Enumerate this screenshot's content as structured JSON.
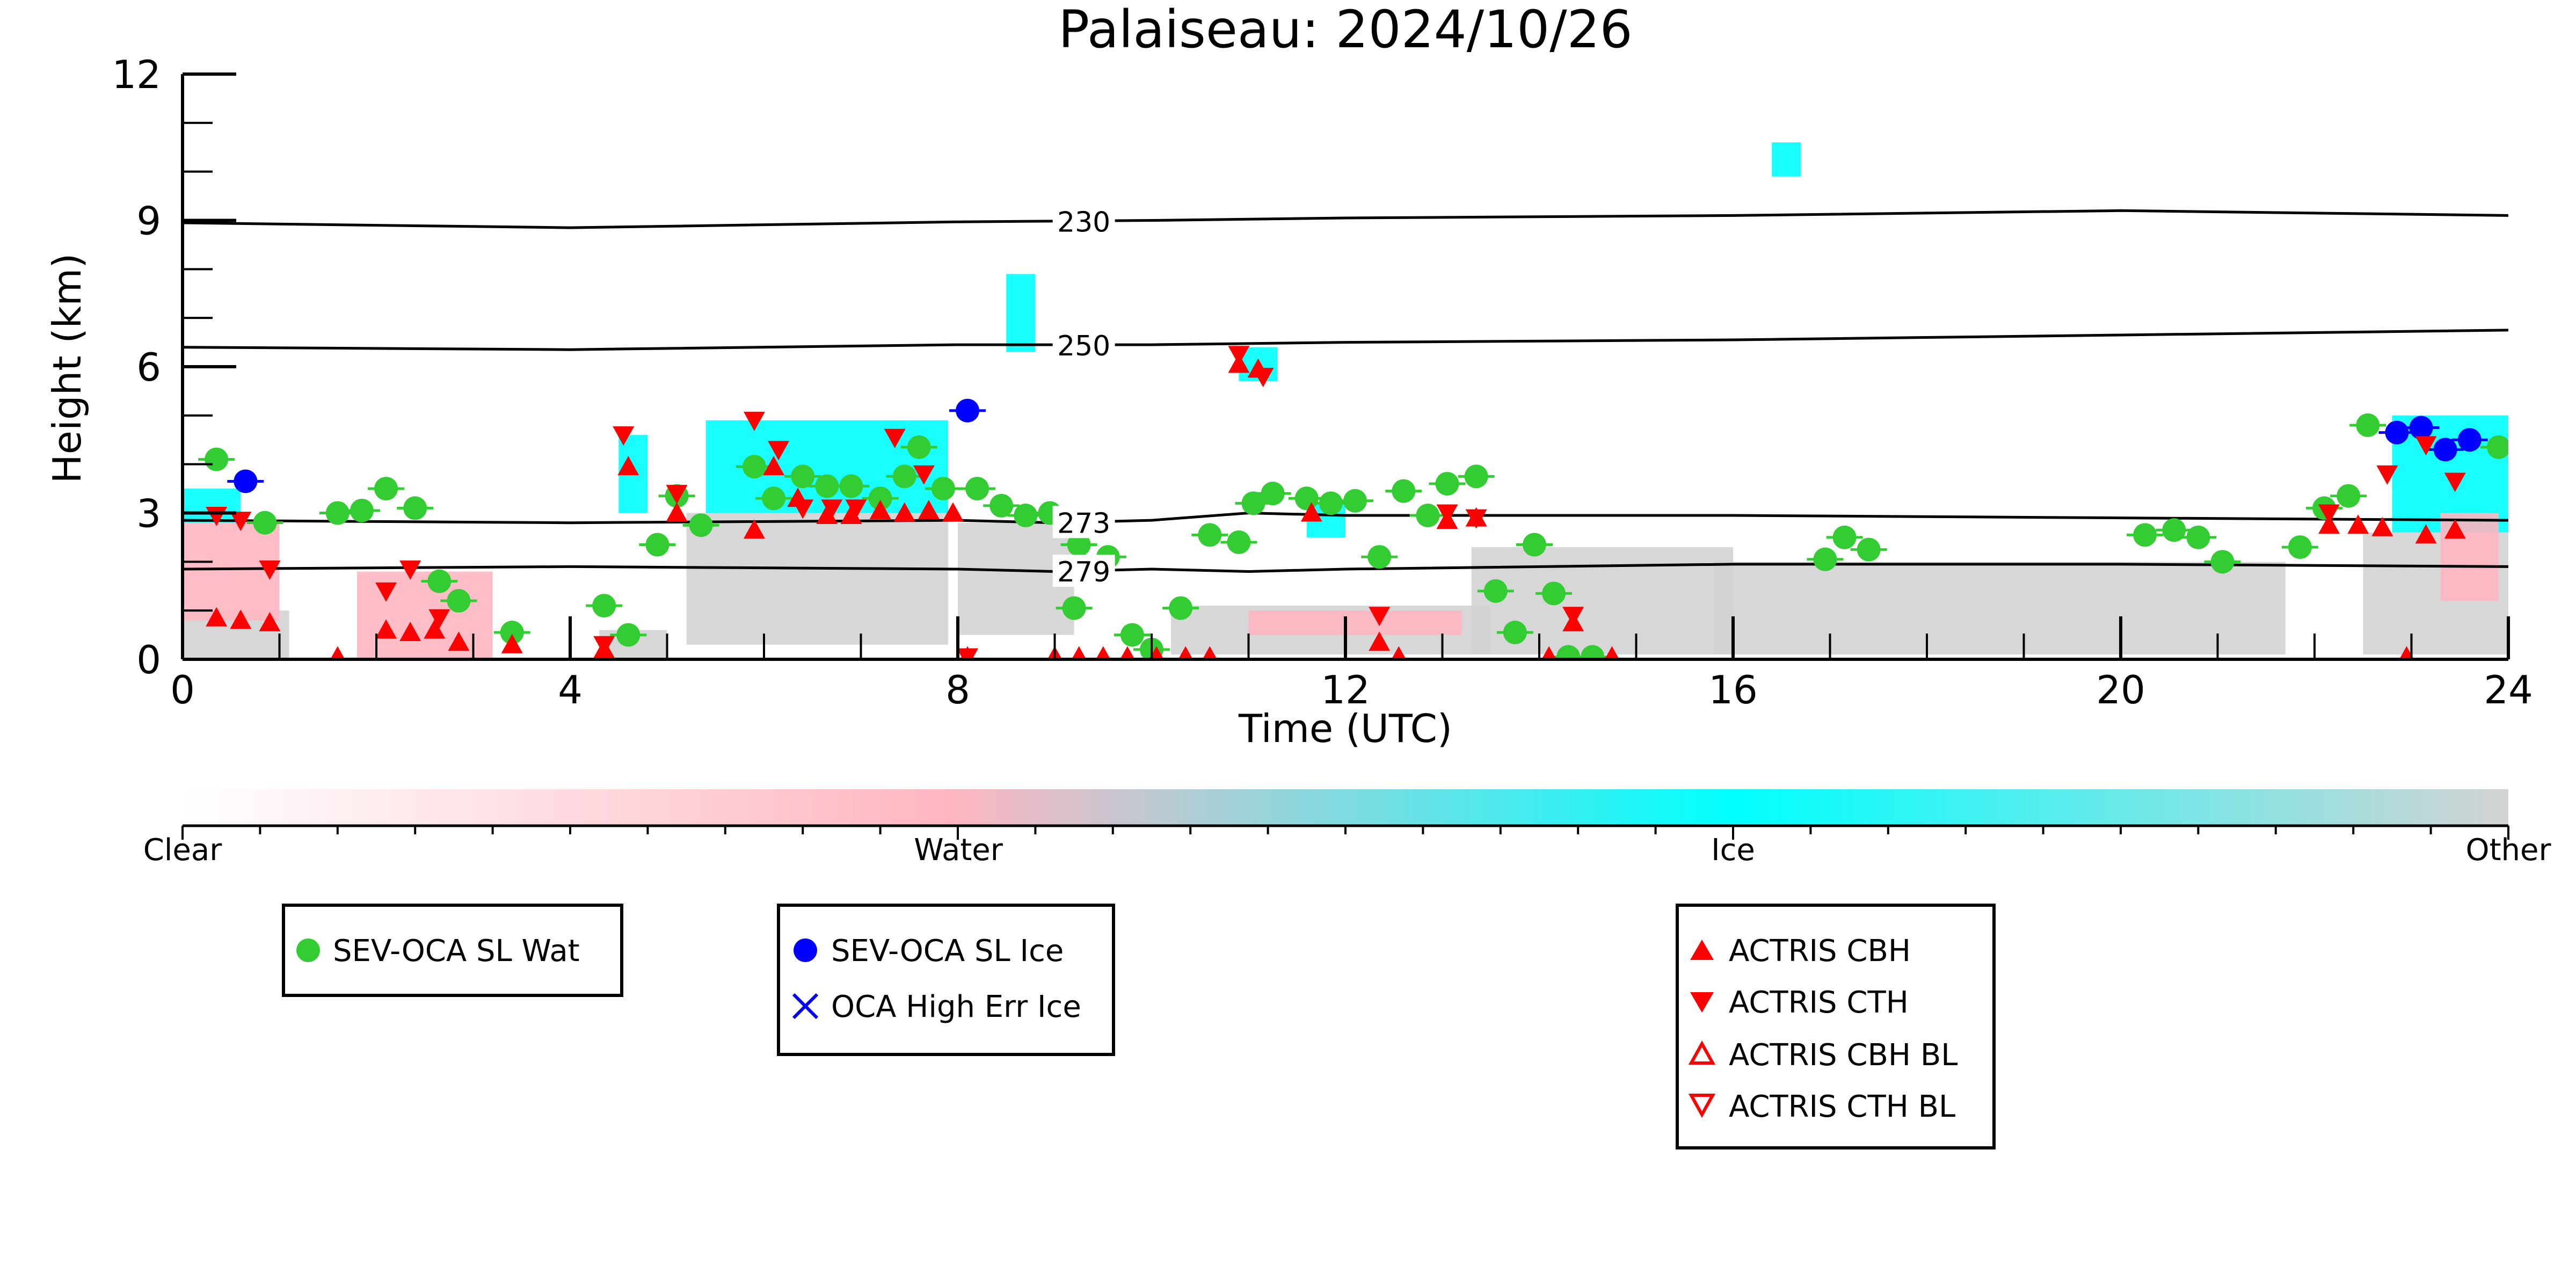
{
  "chart_data": {
    "type": "scatter",
    "title": "Palaiseau: 2024/10/26",
    "xlabel": "Time (UTC)",
    "ylabel": "Height (km)",
    "xlim": [
      0,
      24
    ],
    "ylim": [
      0,
      12
    ],
    "xticks": [
      0,
      4,
      8,
      12,
      16,
      20,
      24
    ],
    "yticks": [
      0,
      3,
      6,
      9,
      12
    ],
    "grid": false,
    "colors": {
      "clear": "#ffffff",
      "water": "#ffb6c1",
      "ice": "#00ffff",
      "other": "#d3d3d3",
      "sevoca_wat": "#33cc33",
      "sevoca_ice": "#0000ff",
      "actris": "#ff0000",
      "isotherm": "#000000"
    },
    "colorbar": {
      "labels": [
        "Clear",
        "Water",
        "Ice",
        "Other"
      ]
    },
    "isotherms": [
      {
        "label": "230",
        "points": [
          [
            0,
            8.95
          ],
          [
            4,
            8.85
          ],
          [
            8,
            8.97
          ],
          [
            10,
            9.0
          ],
          [
            12,
            9.05
          ],
          [
            16,
            9.1
          ],
          [
            20,
            9.2
          ],
          [
            24,
            9.1
          ]
        ]
      },
      {
        "label": "250",
        "points": [
          [
            0,
            6.4
          ],
          [
            4,
            6.35
          ],
          [
            8,
            6.45
          ],
          [
            10,
            6.45
          ],
          [
            12,
            6.5
          ],
          [
            16,
            6.55
          ],
          [
            20,
            6.65
          ],
          [
            24,
            6.75
          ]
        ]
      },
      {
        "label": "273",
        "points": [
          [
            0,
            2.85
          ],
          [
            4,
            2.8
          ],
          [
            8,
            2.85
          ],
          [
            9,
            2.8
          ],
          [
            10,
            2.85
          ],
          [
            11,
            3.0
          ],
          [
            12,
            2.95
          ],
          [
            16,
            2.95
          ],
          [
            20,
            2.9
          ],
          [
            24,
            2.85
          ]
        ]
      },
      {
        "label": "279",
        "points": [
          [
            0,
            1.85
          ],
          [
            4,
            1.9
          ],
          [
            8,
            1.85
          ],
          [
            9,
            1.8
          ],
          [
            10,
            1.85
          ],
          [
            11,
            1.8
          ],
          [
            12,
            1.85
          ],
          [
            16,
            1.95
          ],
          [
            20,
            1.95
          ],
          [
            24,
            1.9
          ]
        ]
      }
    ],
    "cloud_mask": [
      {
        "cls": "other",
        "x0": 0.0,
        "x1": 1.1,
        "y0": 0.0,
        "y1": 1.0
      },
      {
        "cls": "water",
        "x0": 0.0,
        "x1": 1.0,
        "y0": 0.8,
        "y1": 2.8
      },
      {
        "cls": "ice",
        "x0": 0.0,
        "x1": 0.6,
        "y0": 2.8,
        "y1": 3.5
      },
      {
        "cls": "water",
        "x0": 1.8,
        "x1": 3.2,
        "y0": 0.0,
        "y1": 1.8
      },
      {
        "cls": "other",
        "x0": 4.3,
        "x1": 5.0,
        "y0": 0.0,
        "y1": 0.6
      },
      {
        "cls": "ice",
        "x0": 4.5,
        "x1": 4.8,
        "y0": 3.0,
        "y1": 4.6
      },
      {
        "cls": "ice",
        "x0": 5.4,
        "x1": 7.9,
        "y0": 3.0,
        "y1": 4.9
      },
      {
        "cls": "other",
        "x0": 5.2,
        "x1": 7.9,
        "y0": 0.3,
        "y1": 3.0
      },
      {
        "cls": "other",
        "x0": 8.0,
        "x1": 9.2,
        "y0": 0.5,
        "y1": 2.8
      },
      {
        "cls": "ice",
        "x0": 8.5,
        "x1": 8.8,
        "y0": 6.3,
        "y1": 7.9
      },
      {
        "cls": "ice",
        "x0": 10.9,
        "x1": 11.3,
        "y0": 5.7,
        "y1": 6.4
      },
      {
        "cls": "other",
        "x0": 10.2,
        "x1": 13.5,
        "y0": 0.1,
        "y1": 1.1
      },
      {
        "cls": "water",
        "x0": 11.0,
        "x1": 13.2,
        "y0": 0.5,
        "y1": 1.0
      },
      {
        "cls": "other",
        "x0": 13.3,
        "x1": 16.0,
        "y0": 0.1,
        "y1": 2.3
      },
      {
        "cls": "other",
        "x0": 15.8,
        "x1": 21.7,
        "y0": 0.1,
        "y1": 2.0
      },
      {
        "cls": "other",
        "x0": 22.5,
        "x1": 24.0,
        "y0": 0.1,
        "y1": 2.6
      },
      {
        "cls": "ice",
        "x0": 22.8,
        "x1": 24.0,
        "y0": 2.6,
        "y1": 5.0
      },
      {
        "cls": "water",
        "x0": 23.3,
        "x1": 23.9,
        "y0": 1.2,
        "y1": 3.0
      },
      {
        "cls": "ice",
        "x0": 16.4,
        "x1": 16.7,
        "y0": 9.9,
        "y1": 10.6
      },
      {
        "cls": "ice",
        "x0": 11.6,
        "x1": 12.0,
        "y0": 2.5,
        "y1": 3.2
      }
    ],
    "series": [
      {
        "name": "SEV-OCA SL Wat",
        "marker": "circle",
        "x": [
          0.35,
          0.85,
          1.6,
          1.85,
          2.1,
          2.4,
          2.65,
          2.85,
          3.4,
          4.35,
          4.6,
          4.9,
          5.1,
          5.35,
          5.9,
          6.1,
          6.4,
          6.65,
          6.9,
          7.2,
          7.45,
          7.6,
          7.85,
          8.2,
          8.45,
          8.7,
          8.95,
          9.2,
          9.25,
          9.55,
          9.8,
          10.0,
          10.3,
          10.6,
          10.9,
          11.05,
          11.25,
          11.6,
          11.85,
          12.1,
          12.35,
          12.6,
          12.85,
          13.05,
          13.35,
          13.55,
          13.75,
          13.95,
          14.15,
          14.3,
          14.55,
          16.95,
          17.15,
          17.4,
          20.25,
          20.55,
          20.8,
          21.05,
          21.85,
          22.1,
          22.35,
          22.55,
          23.9
        ],
        "y": [
          4.1,
          2.8,
          3.0,
          3.05,
          3.5,
          3.1,
          1.6,
          1.2,
          0.55,
          1.1,
          0.5,
          2.35,
          3.35,
          2.75,
          3.95,
          3.3,
          3.75,
          3.55,
          3.55,
          3.3,
          3.75,
          4.35,
          3.5,
          3.5,
          3.15,
          2.95,
          3.0,
          1.05,
          2.35,
          2.1,
          0.5,
          0.2,
          1.05,
          2.55,
          2.4,
          3.2,
          3.4,
          3.3,
          3.2,
          3.25,
          2.1,
          3.45,
          2.95,
          3.6,
          3.75,
          1.4,
          0.55,
          2.35,
          1.35,
          0.05,
          0.05,
          2.05,
          2.5,
          2.25,
          2.55,
          2.65,
          2.5,
          2.0,
          2.3,
          3.1,
          3.35,
          4.8,
          4.35
        ]
      },
      {
        "name": "SEV-OCA SL Ice",
        "marker": "circle",
        "x": [
          0.65,
          8.1,
          22.85,
          23.1,
          23.35,
          23.6
        ],
        "y": [
          3.65,
          5.1,
          4.65,
          4.75,
          4.3,
          4.5
        ]
      },
      {
        "name": "OCA High Err Ice",
        "marker": "x",
        "x": [],
        "y": []
      },
      {
        "name": "ACTRIS CBH",
        "marker": "triangle-up",
        "x": [
          0.35,
          0.6,
          0.9,
          1.6,
          2.1,
          2.35,
          2.6,
          2.85,
          3.4,
          4.35,
          4.6,
          5.1,
          5.9,
          6.1,
          6.35,
          6.65,
          6.9,
          7.2,
          7.45,
          7.7,
          7.95,
          8.1,
          9.0,
          9.25,
          9.5,
          9.75,
          10.05,
          10.35,
          10.6,
          10.9,
          11.1,
          11.65,
          12.35,
          12.55,
          13.05,
          13.35,
          14.1,
          14.35,
          14.75,
          22.15,
          22.45,
          22.7,
          22.95,
          23.15,
          23.45
        ],
        "y": [
          0.85,
          0.8,
          0.75,
          0.05,
          0.6,
          0.55,
          0.6,
          0.35,
          0.3,
          0.2,
          3.95,
          3.0,
          2.65,
          3.95,
          3.3,
          2.95,
          2.95,
          3.05,
          3.0,
          3.05,
          3.0,
          0.05,
          0.05,
          0.05,
          0.05,
          0.05,
          0.05,
          0.05,
          0.05,
          6.05,
          5.95,
          3.0,
          0.35,
          0.05,
          2.85,
          2.9,
          0.05,
          0.75,
          0.05,
          2.75,
          2.75,
          2.7,
          0.05,
          2.55,
          2.65
        ]
      },
      {
        "name": "ACTRIS CTH",
        "marker": "triangle-down",
        "x": [
          0.35,
          0.6,
          0.9,
          2.1,
          2.35,
          2.65,
          4.35,
          4.55,
          5.1,
          5.9,
          6.15,
          6.4,
          6.7,
          6.95,
          7.35,
          7.65,
          8.1,
          10.9,
          11.15,
          12.35,
          13.05,
          13.35,
          14.35,
          22.15,
          22.75,
          23.15,
          23.45
        ],
        "y": [
          2.95,
          2.85,
          1.85,
          1.4,
          1.85,
          0.85,
          0.3,
          4.6,
          3.4,
          4.9,
          4.3,
          3.1,
          3.1,
          3.1,
          4.55,
          3.8,
          0.05,
          6.25,
          5.8,
          0.9,
          3.0,
          2.9,
          0.9,
          3.0,
          3.8,
          4.4,
          3.65
        ]
      },
      {
        "name": "ACTRIS CBH BL",
        "marker": "triangle-up-open",
        "x": [],
        "y": []
      },
      {
        "name": "ACTRIS CTH BL",
        "marker": "triangle-down-open",
        "x": [],
        "y": []
      }
    ]
  }
}
